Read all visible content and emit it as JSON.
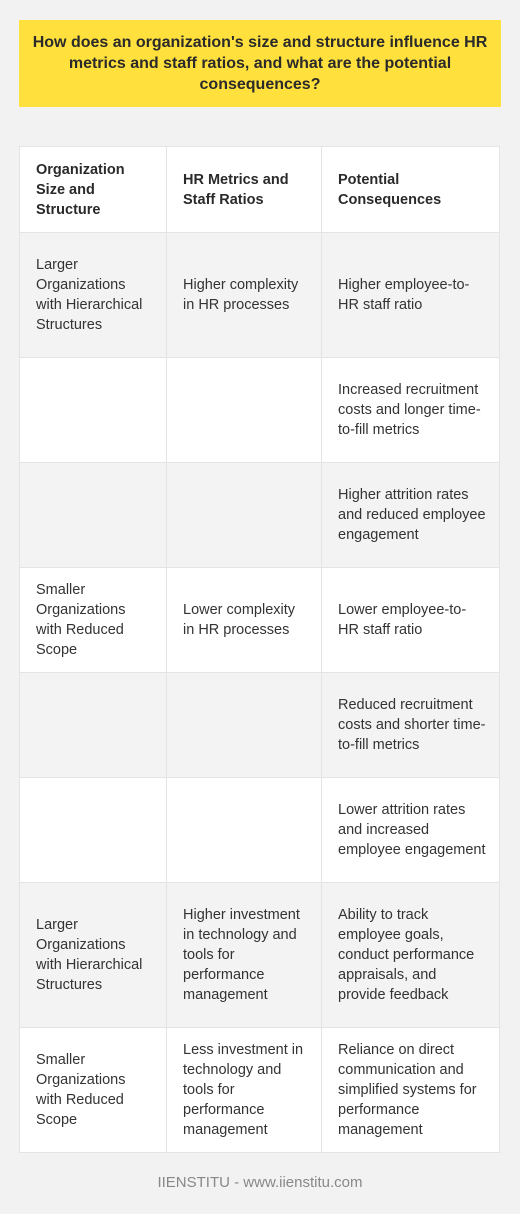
{
  "title": "How does an organization's size and structure influence HR metrics and staff ratios, and what are the potential consequences?",
  "table": {
    "headers": [
      "Organization Size and Structure",
      "HR Metrics and Staff Ratios",
      "Potential Consequences"
    ],
    "rows": [
      [
        "Larger Organizations with Hierarchical Structures",
        "Higher complexity in HR processes",
        "Higher employee-to-HR staff ratio"
      ],
      [
        "",
        "",
        "Increased recruitment costs and longer time-to-fill metrics"
      ],
      [
        "",
        "",
        "Higher attrition rates and reduced employee engagement"
      ],
      [
        "Smaller Organizations with Reduced Scope",
        "Lower complexity in HR processes",
        "Lower employee-to-HR staff ratio"
      ],
      [
        "",
        "",
        "Reduced recruitment costs and shorter time-to-fill metrics"
      ],
      [
        "",
        "",
        "Lower attrition rates and increased employee engagement"
      ],
      [
        "Larger Organizations with Hierarchical Structures",
        "Higher investment in technology and tools for performance management",
        "Ability to track employee goals, conduct performance appraisals, and provide feedback"
      ],
      [
        "Smaller Organizations with Reduced Scope",
        "Less investment in technology and tools for performance management",
        "Reliance on direct communication and simplified systems for performance management"
      ]
    ]
  },
  "footer": "IIENSTITU - www.iienstitu.com",
  "colors": {
    "title_background": "#ffe03d",
    "page_background": "#f2f2f2",
    "row_shaded": "#f3f3f3",
    "row_plain": "#ffffff",
    "footer_text": "#888888"
  }
}
